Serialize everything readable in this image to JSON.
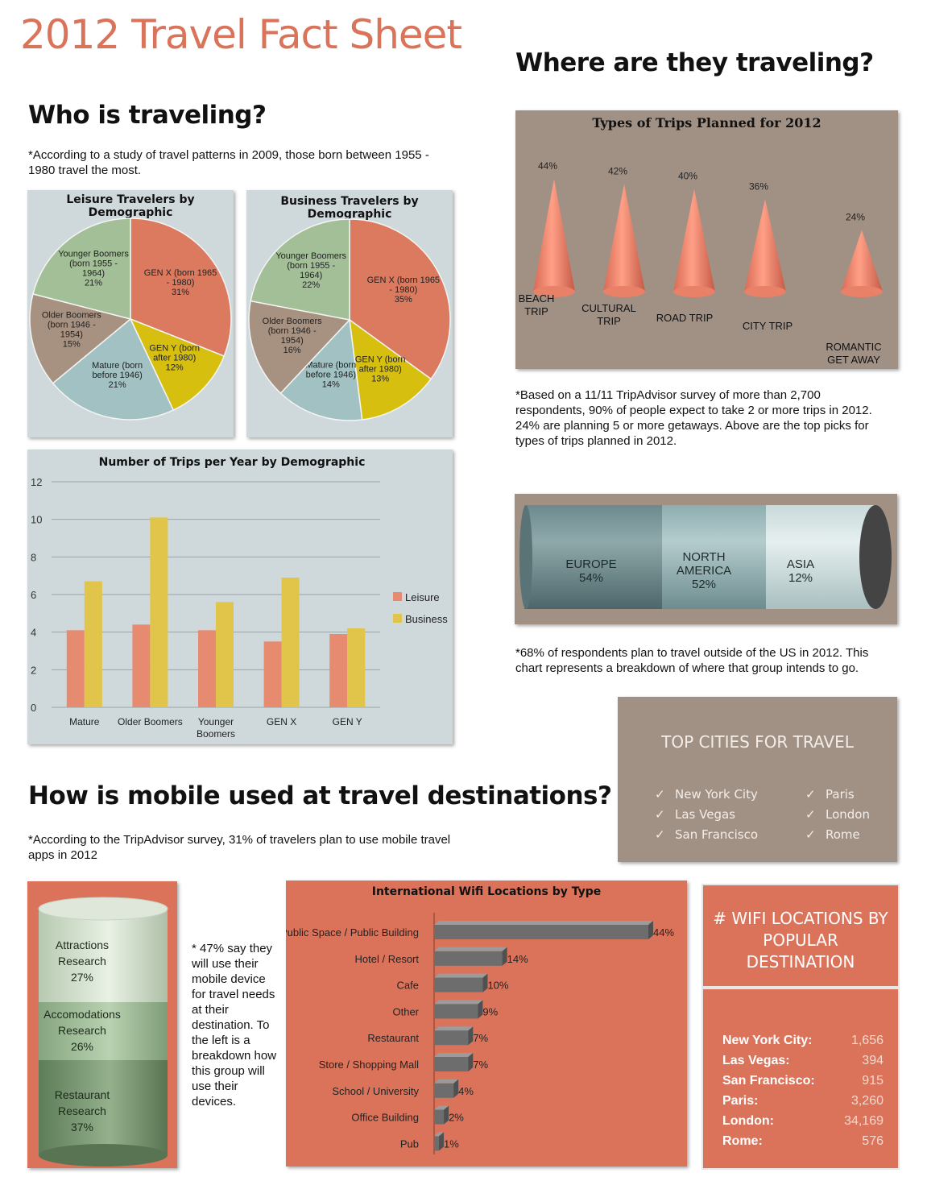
{
  "title": "2012 Travel Fact Sheet",
  "sections": {
    "who": "Who is traveling?",
    "where": "Where are they traveling?",
    "mobile": "How is mobile used at travel destinations?"
  },
  "notes": {
    "who": "*According to a study of travel patterns in 2009, those born between 1955 - 1980 travel the most.",
    "trips": "*Based on a 11/11 TripAdvisor survey of more than 2,700 respondents, 90% of people expect to take 2 or more trips in 2012. 24% are planning 5 or more getaways. Above are the top picks for types of trips planned in 2012.",
    "destinations": "*68% of respondents plan to travel outside of the US in 2012. This chart represents a breakdown of where that group intends to go.",
    "mobile": "*According to the TripAdvisor survey, 31% of travelers plan to use mobile travel apps in 2012",
    "mobile_use": "* 47% say they will use their mobile device for travel needs at their destination. To the left is a breakdown how this group will use their devices."
  },
  "colors": {
    "genx": "#db7a5f",
    "geny": "#d6bf0e",
    "mature": "#a1c1c3",
    "older": "#a79282",
    "younger": "#a3bf97",
    "leisure": "#e68b6f",
    "business": "#e0c54a",
    "panel_brown": "#a19185",
    "panel_orange": "#db735a"
  },
  "top_cities": {
    "title": "TOP CITIES FOR TRAVEL",
    "check": "✓",
    "left": [
      "New York City",
      "Las Vegas",
      "San Francisco"
    ],
    "right": [
      "Paris",
      "London",
      "Rome"
    ]
  },
  "wifi_locations": {
    "title": "# WIFI LOCATIONS BY POPULAR DESTINATION",
    "rows": [
      {
        "name": "New York City:",
        "value": "1,656"
      },
      {
        "name": "Las Vegas:",
        "value": "394"
      },
      {
        "name": "San Francisco:",
        "value": "915"
      },
      {
        "name": "Paris:",
        "value": "3,260"
      },
      {
        "name": "London:",
        "value": "34,169"
      },
      {
        "name": "Rome:",
        "value": "576"
      }
    ]
  },
  "chart_data": [
    {
      "type": "pie",
      "title": "Leisure Travelers by Demographic",
      "slices": [
        {
          "label": "GEN X (born 1965\n- 1980)\n31%",
          "value": 31,
          "color_key": "genx"
        },
        {
          "label": "GEN Y (born\nafter 1980)\n12%",
          "value": 12,
          "color_key": "geny"
        },
        {
          "label": "Mature (born\nbefore 1946)\n21%",
          "value": 21,
          "color_key": "mature"
        },
        {
          "label": "Older Boomers\n(born 1946 -\n1954)\n15%",
          "value": 15,
          "color_key": "older"
        },
        {
          "label": "Younger Boomers\n(born 1955 -\n1964)\n21%",
          "value": 21,
          "color_key": "younger"
        }
      ]
    },
    {
      "type": "pie",
      "title": "Business Travelers by Demographic",
      "slices": [
        {
          "label": "GEN X (born 1965\n- 1980)\n35%",
          "value": 35,
          "color_key": "genx"
        },
        {
          "label": "GEN Y (born\nafter 1980)\n13%",
          "value": 13,
          "color_key": "geny"
        },
        {
          "label": "Mature (born\nbefore 1946)\n14%",
          "value": 14,
          "color_key": "mature"
        },
        {
          "label": "Older Boomers\n(born 1946 -\n1954)\n16%",
          "value": 16,
          "color_key": "older"
        },
        {
          "label": "Younger Boomers\n(born 1955 -\n1964)\n22%",
          "value": 22,
          "color_key": "younger"
        }
      ]
    },
    {
      "type": "bar",
      "title": "Number of Trips per Year by Demographic",
      "categories": [
        "Mature",
        "Older Boomers",
        "Younger\nBoomers",
        "GEN X",
        "GEN Y"
      ],
      "series": [
        {
          "name": "Leisure",
          "values": [
            4.1,
            4.4,
            4.1,
            3.5,
            3.9
          ],
          "color_key": "leisure"
        },
        {
          "name": "Business",
          "values": [
            6.7,
            10.1,
            5.6,
            6.9,
            4.2
          ],
          "color_key": "business"
        }
      ],
      "ylim": [
        0,
        12
      ],
      "yticks": [
        0,
        2,
        4,
        6,
        8,
        10,
        12
      ],
      "legend": "right"
    },
    {
      "type": "bar",
      "title": "Types of Trips Planned for 2012",
      "categories": [
        "BEACH\nTRIP",
        "CULTURAL\nTRIP",
        "ROAD TRIP",
        "CITY  TRIP",
        "ROMANTIC\nGET AWAY"
      ],
      "values": [
        44,
        42,
        40,
        36,
        24
      ],
      "value_labels": [
        "44%",
        "42%",
        "40%",
        "36%",
        "24%"
      ]
    },
    {
      "type": "bar",
      "categories": [
        "EUROPE",
        "NORTH\nAMERICA",
        "ASIA"
      ],
      "values": [
        54,
        52,
        12
      ],
      "value_labels": [
        "54%",
        "52%",
        "12%"
      ]
    },
    {
      "type": "bar",
      "categories": [
        "Attractions\nResearch",
        "Accomodations\nResearch",
        "Restaurant\nResearch"
      ],
      "values": [
        27,
        26,
        37
      ],
      "value_labels": [
        "27%",
        "26%",
        "37%"
      ]
    },
    {
      "type": "bar",
      "title": "International Wifi Locations by Type",
      "categories": [
        "Public Space / Public Building",
        "Hotel / Resort",
        "Cafe",
        "Other",
        "Restaurant",
        "Store / Shopping Mall",
        "School / University",
        "Office Building",
        "Pub"
      ],
      "values": [
        44,
        14,
        10,
        9,
        7,
        7,
        4,
        2,
        1
      ],
      "value_labels": [
        "44%",
        "14%",
        "10%",
        "9%",
        "7%",
        "7%",
        "4%",
        "2%",
        "1%"
      ],
      "orientation": "horizontal"
    }
  ]
}
